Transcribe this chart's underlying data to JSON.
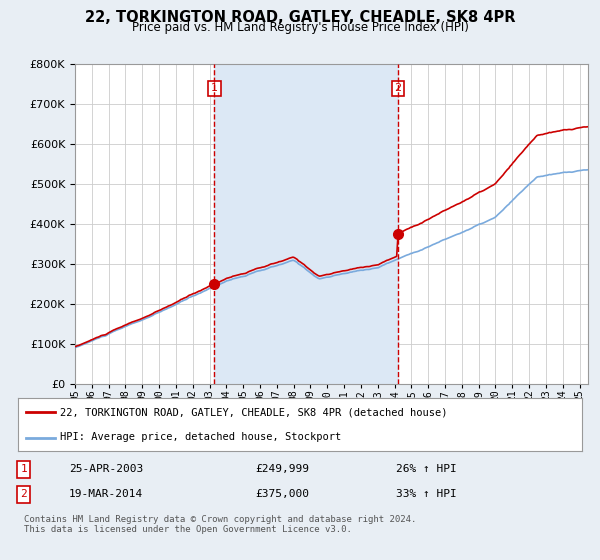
{
  "title": "22, TORKINGTON ROAD, GATLEY, CHEADLE, SK8 4PR",
  "subtitle": "Price paid vs. HM Land Registry's House Price Index (HPI)",
  "ylim": [
    0,
    800000
  ],
  "transaction1": {
    "date_num": 2003.29,
    "price": 249999,
    "label": "1"
  },
  "transaction2": {
    "date_num": 2014.21,
    "price": 375000,
    "label": "2"
  },
  "transaction1_info": {
    "date": "25-APR-2003",
    "price": "£249,999",
    "pct": "26% ↑ HPI"
  },
  "transaction2_info": {
    "date": "19-MAR-2014",
    "price": "£375,000",
    "pct": "33% ↑ HPI"
  },
  "property_label": "22, TORKINGTON ROAD, GATLEY, CHEADLE, SK8 4PR (detached house)",
  "hpi_label": "HPI: Average price, detached house, Stockport",
  "footer": "Contains HM Land Registry data © Crown copyright and database right 2024.\nThis data is licensed under the Open Government Licence v3.0.",
  "line_color_property": "#cc0000",
  "line_color_hpi": "#7aaadd",
  "vline_color": "#cc0000",
  "background_color": "#e8eef4",
  "plot_bg_color": "#ffffff",
  "shade_color": "#dce8f5",
  "grid_color": "#cccccc"
}
